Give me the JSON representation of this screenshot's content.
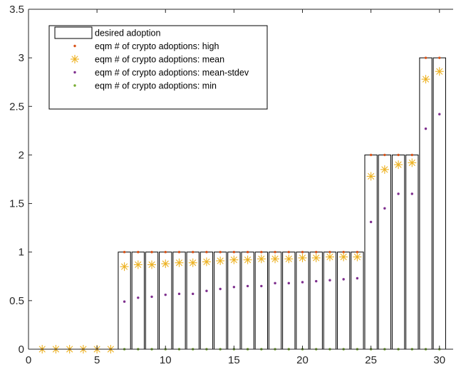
{
  "chart_data": {
    "type": "bar",
    "title": "",
    "xlabel": "",
    "ylabel": "",
    "xlim": [
      0,
      31
    ],
    "ylim": [
      0,
      3.5
    ],
    "xticks": [
      0,
      5,
      10,
      15,
      20,
      25,
      30
    ],
    "yticks": [
      0,
      0.5,
      1,
      1.5,
      2,
      2.5,
      3,
      3.5
    ],
    "grid": false,
    "legend_position": "top-left",
    "x": [
      1,
      2,
      3,
      4,
      5,
      6,
      7,
      8,
      9,
      10,
      11,
      12,
      13,
      14,
      15,
      16,
      17,
      18,
      19,
      20,
      21,
      22,
      23,
      24,
      25,
      26,
      27,
      28,
      29,
      30
    ],
    "series": [
      {
        "name": "desired adoption",
        "style": "bar-outline",
        "color": "#000000",
        "values": [
          0,
          0,
          0,
          0,
          0,
          0,
          1,
          1,
          1,
          1,
          1,
          1,
          1,
          1,
          1,
          1,
          1,
          1,
          1,
          1,
          1,
          1,
          1,
          1,
          2,
          2,
          2,
          2,
          3,
          3
        ]
      },
      {
        "name": "eqm # of crypto adoptions: high",
        "style": "dot",
        "color": "#D95319",
        "values": [
          0,
          0,
          0,
          0,
          0,
          0,
          1,
          1,
          1,
          1,
          1,
          1,
          1,
          1,
          1,
          1,
          1,
          1,
          1,
          1,
          1,
          1,
          1,
          1,
          2,
          2,
          2,
          2,
          3,
          3
        ]
      },
      {
        "name": "eqm # of crypto adoptions: mean",
        "style": "asterisk",
        "color": "#EDB120",
        "values": [
          0,
          0,
          0,
          0,
          0,
          0,
          0.85,
          0.87,
          0.87,
          0.88,
          0.89,
          0.89,
          0.9,
          0.91,
          0.92,
          0.92,
          0.93,
          0.93,
          0.93,
          0.94,
          0.94,
          0.95,
          0.95,
          0.95,
          1.78,
          1.85,
          1.9,
          1.92,
          2.78,
          2.86
        ]
      },
      {
        "name": "eqm # of crypto adoptions: mean-stdev",
        "style": "dot",
        "color": "#7E2F8E",
        "values": [
          0,
          0,
          0,
          0,
          0,
          0,
          0.49,
          0.53,
          0.54,
          0.56,
          0.57,
          0.57,
          0.6,
          0.62,
          0.64,
          0.65,
          0.65,
          0.68,
          0.68,
          0.69,
          0.7,
          0.71,
          0.72,
          0.73,
          1.31,
          1.45,
          1.6,
          1.6,
          2.27,
          2.42
        ]
      },
      {
        "name": "eqm # of crypto adoptions: min",
        "style": "dot",
        "color": "#77AC30",
        "values": [
          0,
          0,
          0,
          0,
          0,
          0,
          0,
          0,
          0,
          0,
          0,
          0,
          0,
          0,
          0,
          0,
          0,
          0,
          0,
          0,
          0,
          0,
          0,
          0,
          0,
          0,
          0,
          0,
          0,
          0
        ]
      }
    ]
  }
}
